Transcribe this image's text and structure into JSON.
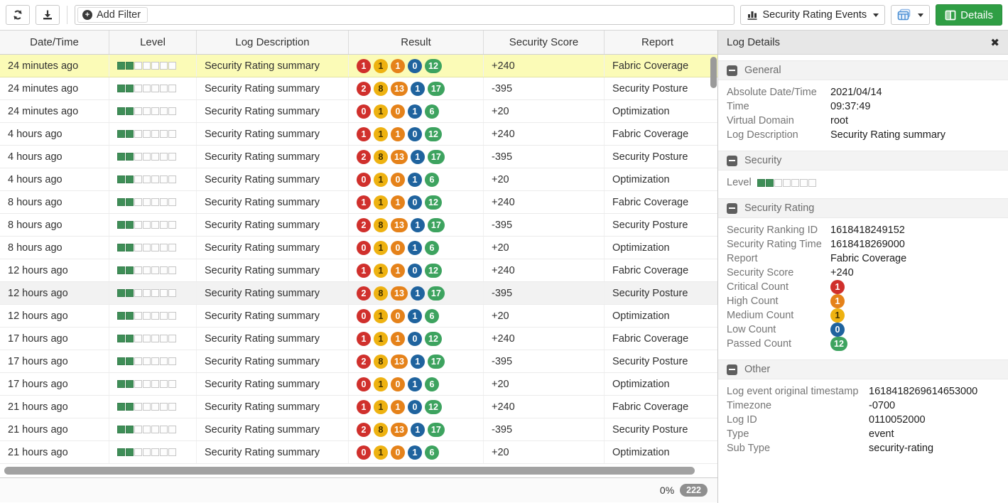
{
  "toolbar": {
    "refresh_icon": "refresh",
    "download_icon": "download",
    "filter_placeholder": "Add Filter",
    "view_selector_label": "Security Rating Events",
    "table_settings_icon": "table-views",
    "details_button_label": "Details",
    "close_icon": "✖"
  },
  "table": {
    "columns": [
      "Date/Time",
      "Level",
      "Log Description",
      "Result",
      "Security Score",
      "Report"
    ],
    "level_filled": 2,
    "level_total": 7,
    "rows": [
      {
        "time": "24 minutes ago",
        "description": "Security Rating summary",
        "badges": [
          {
            "v": "1",
            "s": "critical"
          },
          {
            "v": "1",
            "s": "medium"
          },
          {
            "v": "1",
            "s": "high"
          },
          {
            "v": "0",
            "s": "low"
          },
          {
            "v": "12",
            "s": "passed"
          }
        ],
        "score": "+240",
        "report": "Fabric Coverage",
        "state": "selected"
      },
      {
        "time": "24 minutes ago",
        "description": "Security Rating summary",
        "badges": [
          {
            "v": "2",
            "s": "critical"
          },
          {
            "v": "8",
            "s": "medium"
          },
          {
            "v": "13",
            "s": "high"
          },
          {
            "v": "1",
            "s": "low"
          },
          {
            "v": "17",
            "s": "passed"
          }
        ],
        "score": "-395",
        "report": "Security Posture",
        "state": ""
      },
      {
        "time": "24 minutes ago",
        "description": "Security Rating summary",
        "badges": [
          {
            "v": "0",
            "s": "critical"
          },
          {
            "v": "1",
            "s": "medium"
          },
          {
            "v": "0",
            "s": "high"
          },
          {
            "v": "1",
            "s": "low"
          },
          {
            "v": "6",
            "s": "passed"
          }
        ],
        "score": "+20",
        "report": "Optimization",
        "state": ""
      },
      {
        "time": "4 hours ago",
        "description": "Security Rating summary",
        "badges": [
          {
            "v": "1",
            "s": "critical"
          },
          {
            "v": "1",
            "s": "medium"
          },
          {
            "v": "1",
            "s": "high"
          },
          {
            "v": "0",
            "s": "low"
          },
          {
            "v": "12",
            "s": "passed"
          }
        ],
        "score": "+240",
        "report": "Fabric Coverage",
        "state": ""
      },
      {
        "time": "4 hours ago",
        "description": "Security Rating summary",
        "badges": [
          {
            "v": "2",
            "s": "critical"
          },
          {
            "v": "8",
            "s": "medium"
          },
          {
            "v": "13",
            "s": "high"
          },
          {
            "v": "1",
            "s": "low"
          },
          {
            "v": "17",
            "s": "passed"
          }
        ],
        "score": "-395",
        "report": "Security Posture",
        "state": ""
      },
      {
        "time": "4 hours ago",
        "description": "Security Rating summary",
        "badges": [
          {
            "v": "0",
            "s": "critical"
          },
          {
            "v": "1",
            "s": "medium"
          },
          {
            "v": "0",
            "s": "high"
          },
          {
            "v": "1",
            "s": "low"
          },
          {
            "v": "6",
            "s": "passed"
          }
        ],
        "score": "+20",
        "report": "Optimization",
        "state": ""
      },
      {
        "time": "8 hours ago",
        "description": "Security Rating summary",
        "badges": [
          {
            "v": "1",
            "s": "critical"
          },
          {
            "v": "1",
            "s": "medium"
          },
          {
            "v": "1",
            "s": "high"
          },
          {
            "v": "0",
            "s": "low"
          },
          {
            "v": "12",
            "s": "passed"
          }
        ],
        "score": "+240",
        "report": "Fabric Coverage",
        "state": ""
      },
      {
        "time": "8 hours ago",
        "description": "Security Rating summary",
        "badges": [
          {
            "v": "2",
            "s": "critical"
          },
          {
            "v": "8",
            "s": "medium"
          },
          {
            "v": "13",
            "s": "high"
          },
          {
            "v": "1",
            "s": "low"
          },
          {
            "v": "17",
            "s": "passed"
          }
        ],
        "score": "-395",
        "report": "Security Posture",
        "state": ""
      },
      {
        "time": "8 hours ago",
        "description": "Security Rating summary",
        "badges": [
          {
            "v": "0",
            "s": "critical"
          },
          {
            "v": "1",
            "s": "medium"
          },
          {
            "v": "0",
            "s": "high"
          },
          {
            "v": "1",
            "s": "low"
          },
          {
            "v": "6",
            "s": "passed"
          }
        ],
        "score": "+20",
        "report": "Optimization",
        "state": ""
      },
      {
        "time": "12 hours ago",
        "description": "Security Rating summary",
        "badges": [
          {
            "v": "1",
            "s": "critical"
          },
          {
            "v": "1",
            "s": "medium"
          },
          {
            "v": "1",
            "s": "high"
          },
          {
            "v": "0",
            "s": "low"
          },
          {
            "v": "12",
            "s": "passed"
          }
        ],
        "score": "+240",
        "report": "Fabric Coverage",
        "state": ""
      },
      {
        "time": "12 hours ago",
        "description": "Security Rating summary",
        "badges": [
          {
            "v": "2",
            "s": "critical"
          },
          {
            "v": "8",
            "s": "medium"
          },
          {
            "v": "13",
            "s": "high"
          },
          {
            "v": "1",
            "s": "low"
          },
          {
            "v": "17",
            "s": "passed"
          }
        ],
        "score": "-395",
        "report": "Security Posture",
        "state": "hover"
      },
      {
        "time": "12 hours ago",
        "description": "Security Rating summary",
        "badges": [
          {
            "v": "0",
            "s": "critical"
          },
          {
            "v": "1",
            "s": "medium"
          },
          {
            "v": "0",
            "s": "high"
          },
          {
            "v": "1",
            "s": "low"
          },
          {
            "v": "6",
            "s": "passed"
          }
        ],
        "score": "+20",
        "report": "Optimization",
        "state": ""
      },
      {
        "time": "17 hours ago",
        "description": "Security Rating summary",
        "badges": [
          {
            "v": "1",
            "s": "critical"
          },
          {
            "v": "1",
            "s": "medium"
          },
          {
            "v": "1",
            "s": "high"
          },
          {
            "v": "0",
            "s": "low"
          },
          {
            "v": "12",
            "s": "passed"
          }
        ],
        "score": "+240",
        "report": "Fabric Coverage",
        "state": ""
      },
      {
        "time": "17 hours ago",
        "description": "Security Rating summary",
        "badges": [
          {
            "v": "2",
            "s": "critical"
          },
          {
            "v": "8",
            "s": "medium"
          },
          {
            "v": "13",
            "s": "high"
          },
          {
            "v": "1",
            "s": "low"
          },
          {
            "v": "17",
            "s": "passed"
          }
        ],
        "score": "-395",
        "report": "Security Posture",
        "state": ""
      },
      {
        "time": "17 hours ago",
        "description": "Security Rating summary",
        "badges": [
          {
            "v": "0",
            "s": "critical"
          },
          {
            "v": "1",
            "s": "medium"
          },
          {
            "v": "0",
            "s": "high"
          },
          {
            "v": "1",
            "s": "low"
          },
          {
            "v": "6",
            "s": "passed"
          }
        ],
        "score": "+20",
        "report": "Optimization",
        "state": ""
      },
      {
        "time": "21 hours ago",
        "description": "Security Rating summary",
        "badges": [
          {
            "v": "1",
            "s": "critical"
          },
          {
            "v": "1",
            "s": "medium"
          },
          {
            "v": "1",
            "s": "high"
          },
          {
            "v": "0",
            "s": "low"
          },
          {
            "v": "12",
            "s": "passed"
          }
        ],
        "score": "+240",
        "report": "Fabric Coverage",
        "state": ""
      },
      {
        "time": "21 hours ago",
        "description": "Security Rating summary",
        "badges": [
          {
            "v": "2",
            "s": "critical"
          },
          {
            "v": "8",
            "s": "medium"
          },
          {
            "v": "13",
            "s": "high"
          },
          {
            "v": "1",
            "s": "low"
          },
          {
            "v": "17",
            "s": "passed"
          }
        ],
        "score": "-395",
        "report": "Security Posture",
        "state": ""
      },
      {
        "time": "21 hours ago",
        "description": "Security Rating summary",
        "badges": [
          {
            "v": "0",
            "s": "critical"
          },
          {
            "v": "1",
            "s": "medium"
          },
          {
            "v": "0",
            "s": "high"
          },
          {
            "v": "1",
            "s": "low"
          },
          {
            "v": "6",
            "s": "passed"
          }
        ],
        "score": "+20",
        "report": "Optimization",
        "state": ""
      }
    ]
  },
  "status_bar": {
    "scroll_percent": "0%",
    "total_count": "222"
  },
  "details": {
    "title": "Log Details",
    "sections": [
      {
        "id": "general",
        "title": "General",
        "rows": [
          {
            "label": "Absolute Date/Time",
            "value": "2021/04/14"
          },
          {
            "label": "Time",
            "value": "09:37:49"
          },
          {
            "label": "Virtual Domain",
            "value": "root"
          },
          {
            "label": "Log Description",
            "value": "Security Rating summary"
          }
        ]
      },
      {
        "id": "security",
        "title": "Security",
        "rows": [
          {
            "label": "Level",
            "level": true
          }
        ]
      },
      {
        "id": "rating",
        "title": "Security Rating",
        "rows": [
          {
            "label": "Security Ranking ID",
            "value": "1618418249152"
          },
          {
            "label": "Security Rating Time",
            "value": "1618418269000"
          },
          {
            "label": "Report",
            "value": "Fabric Coverage"
          },
          {
            "label": "Security Score",
            "value": "+240"
          },
          {
            "label": "Critical Count",
            "badge": {
              "v": "1",
              "s": "critical"
            }
          },
          {
            "label": "High Count",
            "badge": {
              "v": "1",
              "s": "high"
            }
          },
          {
            "label": "Medium Count",
            "badge": {
              "v": "1",
              "s": "medium"
            }
          },
          {
            "label": "Low Count",
            "badge": {
              "v": "0",
              "s": "low"
            }
          },
          {
            "label": "Passed Count",
            "badge": {
              "v": "12",
              "s": "passed"
            }
          }
        ]
      },
      {
        "id": "other",
        "title": "Other",
        "rows": [
          {
            "label": "Log event original timestamp",
            "value": "1618418269614653000"
          },
          {
            "label": "Timezone",
            "value": "-0700"
          },
          {
            "label": "Log ID",
            "value": "0110052000"
          },
          {
            "label": "Type",
            "value": "event"
          },
          {
            "label": "Sub Type",
            "value": "security-rating"
          }
        ]
      }
    ]
  },
  "colors": {
    "critical": "#d0302c",
    "high": "#e5821a",
    "medium": "#eeb211",
    "low": "#1f639e",
    "passed": "#3da35f",
    "level_green": "#3e8e57",
    "selected_row": "#fbfbb7",
    "details_accent_green": "#2f9e44"
  }
}
